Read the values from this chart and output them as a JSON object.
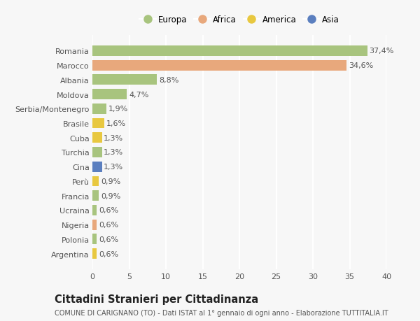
{
  "countries": [
    "Romania",
    "Marocco",
    "Albania",
    "Moldova",
    "Serbia/Montenegro",
    "Brasile",
    "Cuba",
    "Turchia",
    "Cina",
    "Perù",
    "Francia",
    "Ucraina",
    "Nigeria",
    "Polonia",
    "Argentina"
  ],
  "values": [
    37.4,
    34.6,
    8.8,
    4.7,
    1.9,
    1.6,
    1.3,
    1.3,
    1.3,
    0.9,
    0.9,
    0.6,
    0.6,
    0.6,
    0.6
  ],
  "labels": [
    "37,4%",
    "34,6%",
    "8,8%",
    "4,7%",
    "1,9%",
    "1,6%",
    "1,3%",
    "1,3%",
    "1,3%",
    "0,9%",
    "0,9%",
    "0,6%",
    "0,6%",
    "0,6%",
    "0,6%"
  ],
  "continents": [
    "Europa",
    "Africa",
    "Europa",
    "Europa",
    "Europa",
    "America",
    "America",
    "Europa",
    "Asia",
    "America",
    "Europa",
    "Europa",
    "Africa",
    "Europa",
    "America"
  ],
  "colors": {
    "Europa": "#a8c47e",
    "Africa": "#e8a87c",
    "America": "#e8c840",
    "Asia": "#5b7fbf"
  },
  "xlim": [
    0,
    40
  ],
  "xticks": [
    0,
    5,
    10,
    15,
    20,
    25,
    30,
    35,
    40
  ],
  "title": "Cittadini Stranieri per Cittadinanza",
  "subtitle": "COMUNE DI CARIGNANO (TO) - Dati ISTAT al 1° gennaio di ogni anno - Elaborazione TUTTITALIA.IT",
  "background_color": "#f7f7f7",
  "plot_bg_color": "#f7f7f7",
  "grid_color": "#ffffff",
  "bar_height": 0.72,
  "label_fontsize": 8.0,
  "tick_fontsize": 8.0,
  "title_fontsize": 10.5,
  "subtitle_fontsize": 7.0,
  "legend_order": [
    "Europa",
    "Africa",
    "America",
    "Asia"
  ]
}
